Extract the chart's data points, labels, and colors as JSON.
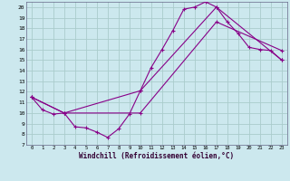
{
  "xlabel": "Windchill (Refroidissement éolien,°C)",
  "bg_color": "#cce8ee",
  "grid_color": "#aacccc",
  "line_color": "#880088",
  "xlim": [
    -0.5,
    23.5
  ],
  "ylim": [
    7,
    20.5
  ],
  "xticks": [
    0,
    1,
    2,
    3,
    4,
    5,
    6,
    7,
    8,
    9,
    10,
    11,
    12,
    13,
    14,
    15,
    16,
    17,
    18,
    19,
    20,
    21,
    22,
    23
  ],
  "yticks": [
    7,
    8,
    9,
    10,
    11,
    12,
    13,
    14,
    15,
    16,
    17,
    18,
    19,
    20
  ],
  "series1_x": [
    0,
    1,
    2,
    3,
    4,
    5,
    6,
    7,
    8,
    9,
    10,
    11,
    12,
    13,
    14,
    15,
    16,
    17,
    18,
    19,
    20,
    21,
    22,
    23
  ],
  "series1_y": [
    11.5,
    10.3,
    9.9,
    10.0,
    8.7,
    8.6,
    8.2,
    7.7,
    8.5,
    9.9,
    12.1,
    14.3,
    16.0,
    17.8,
    19.8,
    20.0,
    20.5,
    20.0,
    18.6,
    17.5,
    16.2,
    16.0,
    15.9,
    15.0
  ],
  "series2_x": [
    0,
    3,
    10,
    17,
    23
  ],
  "series2_y": [
    11.5,
    10.0,
    12.1,
    20.0,
    15.0
  ],
  "series3_x": [
    0,
    3,
    10,
    17,
    23
  ],
  "series3_y": [
    11.5,
    10.0,
    10.0,
    18.6,
    15.9
  ],
  "marker": "+"
}
